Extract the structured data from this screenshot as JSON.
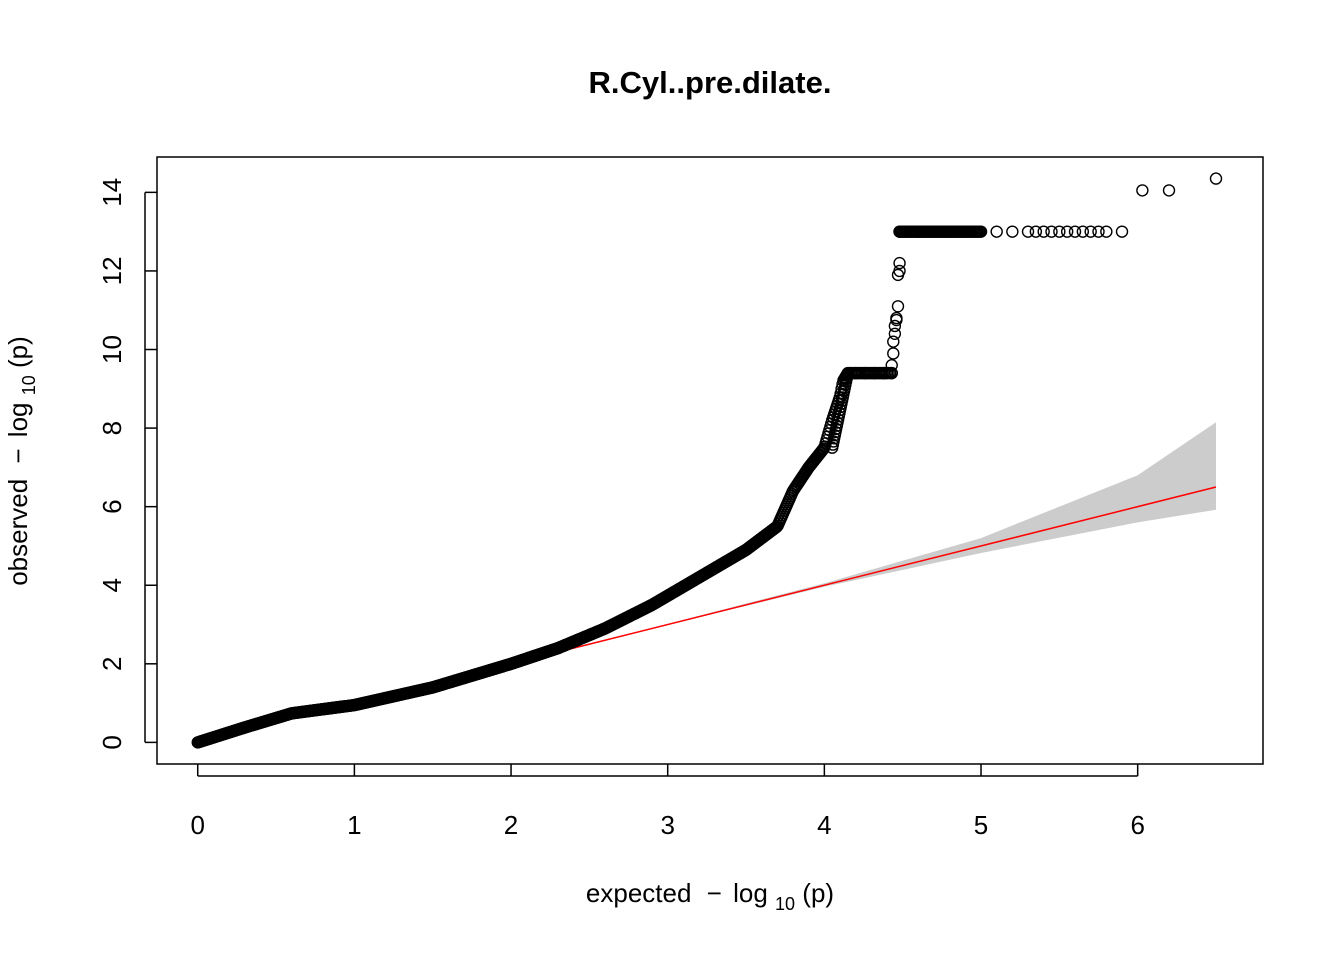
{
  "chart_data": {
    "type": "scatter",
    "title": "R.Cyl..pre.dilate.",
    "xlabel": {
      "main": "expected",
      "minus": "−",
      "fn": "log",
      "sub": "10",
      "arg": "(p)"
    },
    "ylabel": {
      "main": "observed",
      "minus": "−",
      "fn": "log",
      "sub": "10",
      "arg": "(p)"
    },
    "xlim": [
      -0.26,
      6.8
    ],
    "ylim": [
      -0.55,
      14.9
    ],
    "x_ticks": [
      "0",
      "1",
      "2",
      "3",
      "4",
      "5",
      "6"
    ],
    "y_ticks": [
      "0",
      "2",
      "4",
      "6",
      "8",
      "10",
      "12",
      "14"
    ],
    "grid": false,
    "observed_curve": {
      "x": [
        0.0,
        0.3,
        0.6,
        1.0,
        1.5,
        2.0,
        2.3,
        2.6,
        2.9,
        3.2,
        3.5,
        3.7,
        3.8,
        3.9,
        4.0,
        4.05,
        4.1,
        4.12,
        4.15
      ],
      "y": [
        0.0,
        0.38,
        0.74,
        0.95,
        1.4,
        2.0,
        2.4,
        2.9,
        3.5,
        4.2,
        4.9,
        5.5,
        6.4,
        7.0,
        7.5,
        8.2,
        8.8,
        9.2,
        9.4
      ]
    },
    "plateau_points": {
      "x": [
        4.2,
        4.26,
        4.32,
        4.38,
        4.43
      ],
      "y": [
        9.4,
        9.4,
        9.4,
        9.4,
        9.4
      ]
    },
    "jump_points": {
      "x": [
        4.43,
        4.44,
        4.44,
        4.45,
        4.45,
        4.46,
        4.46,
        4.47,
        4.47,
        4.48,
        4.48
      ],
      "y": [
        9.6,
        9.9,
        10.2,
        10.4,
        10.6,
        10.75,
        10.8,
        11.1,
        11.9,
        12.0,
        12.2
      ]
    },
    "top_band": {
      "x": [
        4.48,
        4.6,
        4.8,
        5.0,
        5.1,
        5.2,
        5.3,
        5.35,
        5.4,
        5.45,
        5.5,
        5.55,
        5.6,
        5.65,
        5.7,
        5.75,
        5.8,
        5.9
      ],
      "y": [
        13.0,
        13.0,
        13.0,
        13.0,
        13.0,
        13.0,
        13.0,
        13.0,
        13.0,
        13.0,
        13.0,
        13.0,
        13.0,
        13.0,
        13.0,
        13.0,
        13.0,
        13.0
      ]
    },
    "top_points": {
      "x": [
        6.03,
        6.2,
        6.5
      ],
      "y": [
        14.05,
        14.05,
        14.35
      ]
    },
    "expected_line": {
      "x": [
        0.0,
        6.5
      ],
      "y": [
        0.0,
        6.5
      ],
      "color": "#ff0000"
    },
    "confidence_band": {
      "x": [
        2.0,
        3.0,
        4.0,
        5.0,
        6.0,
        6.5
      ],
      "lower": [
        1.99,
        2.99,
        3.96,
        4.82,
        5.6,
        5.92
      ],
      "upper": [
        2.01,
        3.02,
        4.05,
        5.2,
        6.8,
        8.15
      ],
      "color": "#cccccc"
    },
    "point_color": "#000000"
  }
}
